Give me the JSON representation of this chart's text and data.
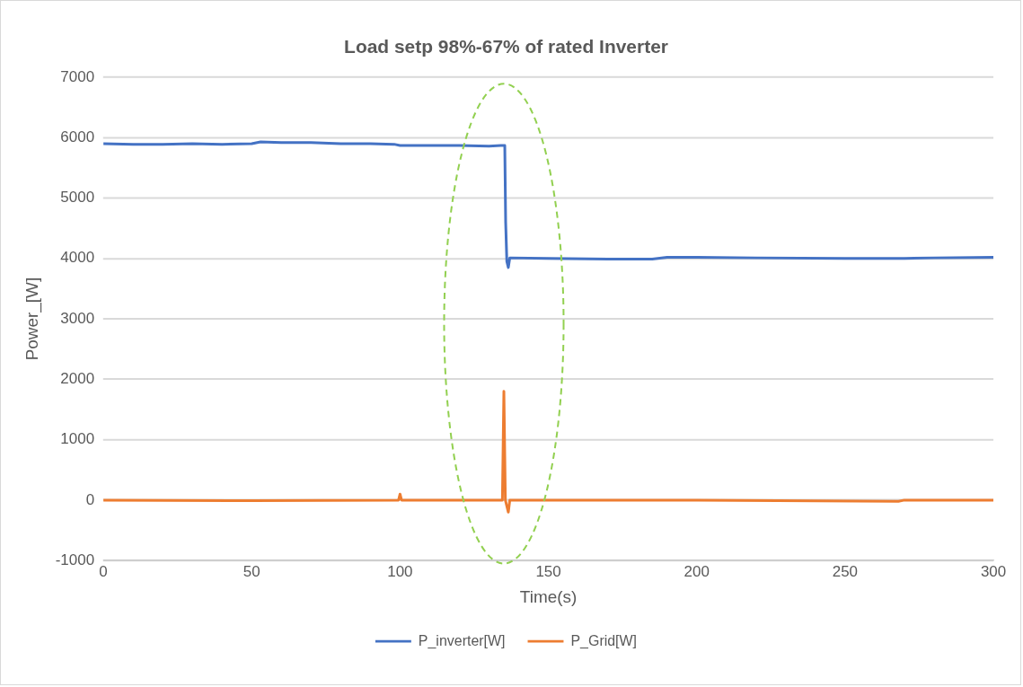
{
  "chart_data": {
    "type": "line",
    "title": "Load setp 98%-67% of rated Inverter",
    "xlabel": "Time(s)",
    "ylabel": "Power_[W]",
    "xlim": [
      0,
      300
    ],
    "xticks": [
      0,
      50,
      100,
      150,
      200,
      250,
      300
    ],
    "ylim": [
      -1000,
      7000
    ],
    "yticks": [
      -1000,
      0,
      1000,
      2000,
      3000,
      4000,
      5000,
      6000,
      7000
    ],
    "grid": "y",
    "legend": "bottom",
    "marker": "none",
    "line_style": "solid",
    "series": [
      {
        "name": "P_inverter[W]",
        "color": "#4472c4",
        "x": [
          0,
          10,
          20,
          30,
          40,
          50,
          53,
          60,
          70,
          80,
          90,
          98,
          100,
          110,
          120,
          130,
          134,
          135.3,
          135.6,
          136,
          136.5,
          137,
          150,
          170,
          185,
          190,
          200,
          220,
          250,
          270,
          280,
          300
        ],
        "values": [
          5900,
          5890,
          5890,
          5900,
          5890,
          5900,
          5930,
          5920,
          5920,
          5900,
          5900,
          5890,
          5870,
          5870,
          5870,
          5860,
          5870,
          5870,
          4600,
          3950,
          3850,
          4010,
          4000,
          3990,
          3990,
          4020,
          4020,
          4010,
          4000,
          4000,
          4010,
          4020
        ]
      },
      {
        "name": "P_Grid[W]",
        "color": "#ed7d31",
        "x": [
          0,
          50,
          99.5,
          100,
          100.5,
          134.5,
          135,
          135.5,
          136.5,
          137,
          200,
          268,
          270,
          300
        ],
        "values": [
          0,
          -10,
          0,
          100,
          0,
          0,
          1800,
          0,
          -200,
          0,
          0,
          -20,
          0,
          0
        ]
      }
    ]
  }
}
